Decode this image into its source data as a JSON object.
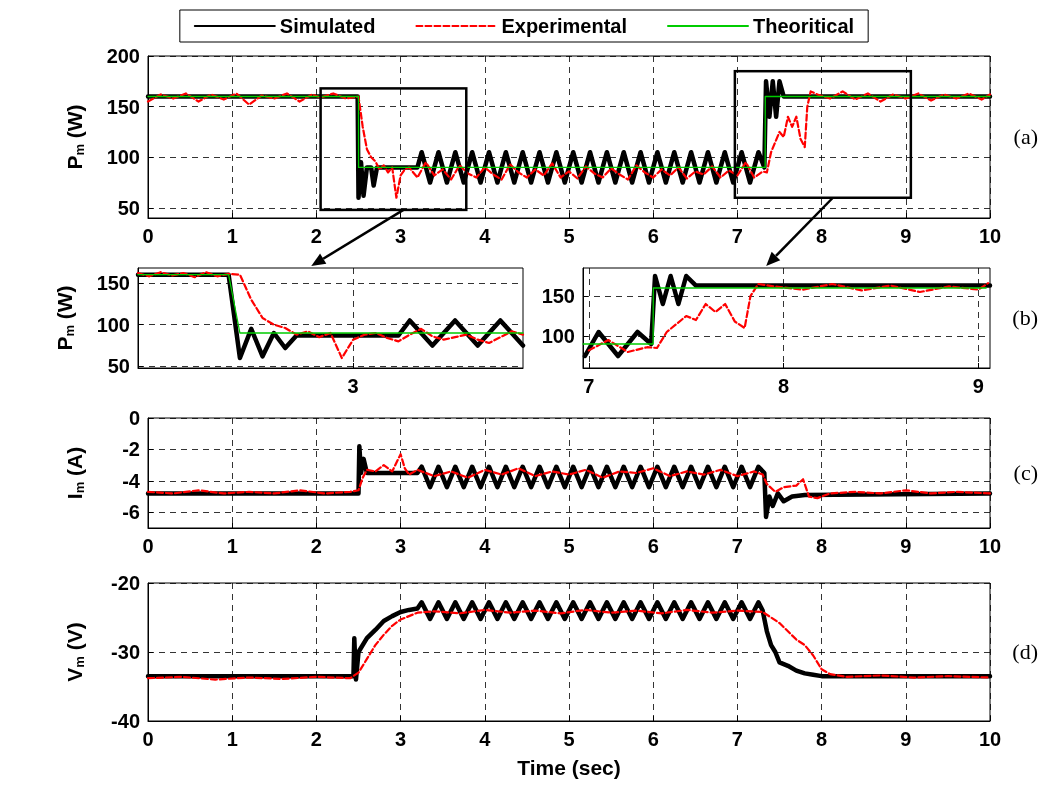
{
  "chart_data": [
    {
      "type": "line",
      "ylabel": "P$_{m}$ (W)",
      "annotations": [
        "(a)"
      ],
      "xlim": [
        0,
        10
      ],
      "xticks": [
        0,
        1,
        2,
        3,
        4,
        5,
        6,
        7,
        8,
        9,
        10
      ],
      "ylim": [
        40,
        200
      ],
      "yticks": [
        50,
        100,
        150,
        200
      ],
      "grid": true,
      "legend": "top",
      "marker": "none",
      "series": [
        {
          "name": "Simulated",
          "color": "#000000",
          "line_style": "solid",
          "x": [
            0,
            2.49,
            2.5,
            2.53,
            2.56,
            2.6,
            2.65,
            2.68,
            2.72,
            3.2,
            3.25,
            3.35,
            3.45,
            3.55,
            3.65,
            3.75,
            3.85,
            3.95,
            4.05,
            4.15,
            4.25,
            4.35,
            4.45,
            4.55,
            4.65,
            4.75,
            4.85,
            4.95,
            5.05,
            5.15,
            5.25,
            5.35,
            5.45,
            5.55,
            5.65,
            5.75,
            5.85,
            5.95,
            6.05,
            6.15,
            6.25,
            6.35,
            6.45,
            6.55,
            6.65,
            6.75,
            6.85,
            6.95,
            7.05,
            7.15,
            7.25,
            7.32,
            7.34,
            7.38,
            7.42,
            7.46,
            7.5,
            7.55,
            7.6,
            10
          ],
          "values": [
            160,
            160,
            60,
            95,
            62,
            90,
            90,
            72,
            90,
            90,
            105,
            75,
            105,
            75,
            105,
            75,
            105,
            75,
            105,
            75,
            105,
            75,
            105,
            75,
            105,
            75,
            105,
            75,
            105,
            75,
            105,
            75,
            105,
            75,
            105,
            75,
            105,
            75,
            105,
            75,
            105,
            75,
            105,
            75,
            105,
            75,
            105,
            75,
            105,
            75,
            105,
            90,
            175,
            140,
            175,
            140,
            175,
            160,
            160,
            160
          ]
        },
        {
          "name": "Experimental",
          "color": "#ff0000",
          "line_style": "dashed",
          "x": [
            0,
            0.15,
            0.3,
            0.45,
            0.6,
            0.75,
            0.9,
            1.05,
            1.2,
            1.35,
            1.5,
            1.65,
            1.8,
            1.95,
            2.05,
            2.2,
            2.35,
            2.5,
            2.55,
            2.6,
            2.65,
            2.7,
            2.75,
            2.8,
            2.85,
            2.9,
            2.95,
            3.0,
            3.05,
            3.1,
            3.2,
            3.3,
            3.4,
            3.5,
            3.6,
            3.7,
            3.8,
            3.9,
            4.0,
            4.1,
            4.2,
            4.3,
            4.4,
            4.5,
            4.6,
            4.7,
            4.8,
            4.9,
            5.0,
            5.1,
            5.2,
            5.3,
            5.4,
            5.5,
            5.6,
            5.7,
            5.8,
            5.9,
            6.0,
            6.1,
            6.2,
            6.3,
            6.4,
            6.5,
            6.6,
            6.7,
            6.8,
            6.9,
            7.0,
            7.1,
            7.2,
            7.3,
            7.35,
            7.4,
            7.45,
            7.5,
            7.55,
            7.6,
            7.65,
            7.7,
            7.75,
            7.8,
            7.83,
            7.87,
            7.95,
            8.1,
            8.25,
            8.4,
            8.55,
            8.7,
            8.85,
            9.0,
            9.15,
            9.3,
            9.45,
            9.6,
            9.75,
            9.9,
            10
          ],
          "values": [
            155,
            162,
            158,
            163,
            155,
            162,
            157,
            163,
            152,
            161,
            158,
            163,
            155,
            162,
            159,
            163,
            158,
            160,
            130,
            108,
            100,
            96,
            88,
            92,
            85,
            90,
            60,
            82,
            88,
            90,
            80,
            95,
            82,
            88,
            78,
            92,
            84,
            80,
            90,
            83,
            78,
            93,
            85,
            80,
            88,
            82,
            94,
            80,
            86,
            79,
            91,
            84,
            80,
            89,
            83,
            78,
            92,
            85,
            80,
            88,
            82,
            90,
            79,
            86,
            83,
            91,
            80,
            87,
            82,
            95,
            80,
            86,
            85,
            105,
            115,
            125,
            120,
            140,
            130,
            140,
            118,
            110,
            150,
            165,
            162,
            158,
            165,
            157,
            163,
            155,
            162,
            158,
            163,
            156,
            162,
            158,
            163,
            157,
            162
          ]
        },
        {
          "name": "Theoritical",
          "color": "#00cc00",
          "line_style": "solid",
          "x": [
            0,
            2.5,
            2.501,
            7.33,
            7.331,
            10
          ],
          "values": [
            160,
            160,
            90,
            90,
            160,
            160
          ]
        }
      ]
    },
    {
      "type": "line",
      "ylabel": "P$_{m}$ (W)",
      "categories": [
        null,
        null,
        null,
        null,
        null,
        null,
        null,
        null,
        null,
        null,
        null,
        null,
        null,
        null,
        null,
        null,
        null,
        null,
        null,
        "3",
        null,
        null,
        null,
        null,
        null,
        null,
        null,
        null,
        null,
        null,
        null,
        null,
        null,
        null,
        null
      ],
      "ylim": [
        48,
        168
      ],
      "yticks": [
        50,
        100,
        150
      ],
      "grid": true,
      "marker": "none",
      "series": [
        {
          "color": "#000000",
          "line_style": "solid",
          "values": [
            160,
            160,
            160,
            160,
            160,
            160,
            160,
            160,
            160,
            60,
            95,
            62,
            90,
            72,
            87,
            87,
            87,
            87,
            87,
            87,
            87,
            87,
            87,
            87,
            105,
            90,
            75,
            90,
            105,
            90,
            75,
            90,
            105,
            90,
            75
          ]
        },
        {
          "color": "#ff0000",
          "line_style": "dashed",
          "values": [
            162,
            158,
            163,
            159,
            162,
            157,
            163,
            158,
            161,
            160,
            130,
            108,
            100,
            96,
            88,
            92,
            85,
            90,
            60,
            82,
            88,
            90,
            84,
            80,
            88,
            95,
            86,
            82,
            85,
            88,
            82,
            78,
            85,
            92,
            88
          ]
        },
        {
          "color": "#00cc00",
          "line_style": "solid",
          "values": [
            160,
            160,
            160,
            160,
            160,
            160,
            160,
            160,
            160,
            90,
            90,
            90,
            90,
            90,
            90,
            90,
            90,
            90,
            90,
            90,
            90,
            90,
            90,
            90,
            90,
            90,
            90,
            90,
            90,
            90,
            90,
            90,
            90,
            90,
            90
          ]
        }
      ]
    },
    {
      "type": "line",
      "annotations": [
        "(b)"
      ],
      "xlim": [
        6.97,
        9.06
      ],
      "xticks": [
        7,
        8,
        9
      ],
      "ylim": [
        60,
        185
      ],
      "yticks": [
        100,
        150
      ],
      "grid": true,
      "marker": "none",
      "series": [
        {
          "color": "#000000",
          "line_style": "solid",
          "x": [
            6.98,
            7.05,
            7.15,
            7.25,
            7.32,
            7.34,
            7.38,
            7.42,
            7.46,
            7.5,
            7.55,
            7.6,
            9.06
          ],
          "values": [
            75,
            105,
            75,
            105,
            90,
            175,
            140,
            175,
            140,
            175,
            163,
            163,
            163
          ]
        },
        {
          "color": "#ff0000",
          "line_style": "dashed",
          "x": [
            7.0,
            7.1,
            7.2,
            7.3,
            7.35,
            7.4,
            7.45,
            7.5,
            7.55,
            7.6,
            7.65,
            7.7,
            7.75,
            7.8,
            7.83,
            7.87,
            7.95,
            8.1,
            8.25,
            8.4,
            8.55,
            8.7,
            8.85,
            9.0,
            9.05
          ],
          "values": [
            82,
            95,
            80,
            86,
            85,
            105,
            115,
            125,
            120,
            140,
            130,
            140,
            118,
            110,
            150,
            165,
            162,
            158,
            165,
            157,
            163,
            155,
            162,
            158,
            166
          ]
        },
        {
          "color": "#00cc00",
          "line_style": "solid",
          "x": [
            6.97,
            7.33,
            7.331,
            9.04
          ],
          "values": [
            90,
            90,
            160,
            160
          ]
        }
      ]
    },
    {
      "type": "line",
      "ylabel": "I$_{m}$ (A)",
      "annotations": [
        "(c)"
      ],
      "xlim": [
        0,
        10
      ],
      "xticks": [
        0,
        1,
        2,
        3,
        4,
        5,
        6,
        7,
        8,
        9,
        10
      ],
      "ylim": [
        -7,
        0
      ],
      "yticks": [
        -6,
        -4,
        -2,
        0
      ],
      "grid": true,
      "marker": "none",
      "series": [
        {
          "color": "#000000",
          "line_style": "solid",
          "x": [
            0,
            2.49,
            2.5,
            2.51,
            2.53,
            2.56,
            2.6,
            3.2,
            3.25,
            3.35,
            3.45,
            3.55,
            3.65,
            3.75,
            3.85,
            3.95,
            4.05,
            4.15,
            4.25,
            4.35,
            4.45,
            4.55,
            4.65,
            4.75,
            4.85,
            4.95,
            5.05,
            5.15,
            5.25,
            5.35,
            5.45,
            5.55,
            5.65,
            5.75,
            5.85,
            5.95,
            6.05,
            6.15,
            6.25,
            6.35,
            6.45,
            6.55,
            6.65,
            6.75,
            6.85,
            6.95,
            7.05,
            7.15,
            7.25,
            7.32,
            7.34,
            7.38,
            7.42,
            7.48,
            7.55,
            7.65,
            7.8,
            10
          ],
          "values": [
            -4.8,
            -4.8,
            -4.8,
            -1.8,
            -3.5,
            -2.6,
            -3.5,
            -3.5,
            -3.1,
            -4.4,
            -3.1,
            -4.4,
            -3.1,
            -4.4,
            -3.1,
            -4.4,
            -3.1,
            -4.4,
            -3.1,
            -4.4,
            -3.1,
            -4.4,
            -3.1,
            -4.4,
            -3.1,
            -4.4,
            -3.1,
            -4.4,
            -3.1,
            -4.4,
            -3.1,
            -4.4,
            -3.1,
            -4.4,
            -3.1,
            -4.4,
            -3.1,
            -4.4,
            -3.1,
            -4.4,
            -3.1,
            -4.4,
            -3.1,
            -4.4,
            -3.1,
            -4.4,
            -3.1,
            -4.4,
            -3.1,
            -3.5,
            -6.3,
            -5.0,
            -5.6,
            -4.8,
            -5.3,
            -5.0,
            -4.9,
            -4.8
          ]
        },
        {
          "color": "#ff0000",
          "line_style": "dashed",
          "x": [
            0,
            0.3,
            0.6,
            0.9,
            1.2,
            1.5,
            1.8,
            2.1,
            2.4,
            2.5,
            2.55,
            2.6,
            2.7,
            2.8,
            2.9,
            3.0,
            3.05,
            3.1,
            3.2,
            3.4,
            3.6,
            3.8,
            4.0,
            4.2,
            4.4,
            4.6,
            4.8,
            5.0,
            5.2,
            5.4,
            5.6,
            5.8,
            6.0,
            6.2,
            6.4,
            6.6,
            6.8,
            7.0,
            7.2,
            7.3,
            7.35,
            7.45,
            7.55,
            7.7,
            7.78,
            7.85,
            7.95,
            8.1,
            8.4,
            8.7,
            9.0,
            9.3,
            9.6,
            10
          ],
          "values": [
            -4.7,
            -4.8,
            -4.6,
            -4.8,
            -4.7,
            -4.8,
            -4.6,
            -4.8,
            -4.7,
            -4.6,
            -3.8,
            -3.3,
            -3.4,
            -3.0,
            -3.4,
            -2.3,
            -3.2,
            -3.6,
            -3.3,
            -3.7,
            -3.4,
            -3.8,
            -3.3,
            -3.6,
            -3.2,
            -3.7,
            -3.4,
            -3.6,
            -3.3,
            -3.8,
            -3.4,
            -3.5,
            -3.2,
            -3.7,
            -3.4,
            -3.6,
            -3.3,
            -3.7,
            -3.4,
            -3.6,
            -4.2,
            -4.7,
            -4.4,
            -4.3,
            -3.9,
            -5.0,
            -5.1,
            -4.8,
            -4.7,
            -4.8,
            -4.6,
            -4.8,
            -4.7,
            -4.8
          ]
        }
      ]
    },
    {
      "type": "line",
      "xlabel": "Time (sec)",
      "ylabel": "V$_{m}$ (V)",
      "annotations": [
        "(d)"
      ],
      "xlim": [
        0,
        10
      ],
      "xticks": [
        0,
        1,
        2,
        3,
        4,
        5,
        6,
        7,
        8,
        9,
        10
      ],
      "ylim": [
        -40,
        -20
      ],
      "yticks": [
        -40,
        -30,
        -20
      ],
      "grid": true,
      "marker": "none",
      "series": [
        {
          "color": "#000000",
          "line_style": "solid",
          "x": [
            0,
            2.44,
            2.45,
            2.47,
            2.5,
            2.6,
            2.7,
            2.8,
            2.9,
            3.0,
            3.1,
            3.2,
            3.25,
            3.35,
            3.45,
            3.55,
            3.65,
            3.75,
            3.85,
            3.95,
            4.05,
            4.15,
            4.25,
            4.35,
            4.45,
            4.55,
            4.65,
            4.75,
            4.85,
            4.95,
            5.05,
            5.15,
            5.25,
            5.35,
            5.45,
            5.55,
            5.65,
            5.75,
            5.85,
            5.95,
            6.05,
            6.15,
            6.25,
            6.35,
            6.45,
            6.55,
            6.65,
            6.75,
            6.85,
            6.95,
            7.05,
            7.15,
            7.25,
            7.3,
            7.35,
            7.4,
            7.45,
            7.5,
            7.6,
            7.7,
            7.8,
            7.9,
            8.0,
            10
          ],
          "values": [
            -33.5,
            -33.5,
            -28,
            -34,
            -30,
            -28,
            -26.8,
            -25.5,
            -24.8,
            -24.2,
            -23.9,
            -23.7,
            -22.8,
            -25.2,
            -22.8,
            -25.2,
            -22.8,
            -25.2,
            -22.8,
            -25.2,
            -22.8,
            -25.2,
            -22.8,
            -25.2,
            -22.8,
            -25.2,
            -22.8,
            -25.2,
            -22.8,
            -25.2,
            -22.8,
            -25.2,
            -22.8,
            -25.2,
            -22.8,
            -25.2,
            -22.8,
            -25.2,
            -22.8,
            -25.2,
            -22.8,
            -25.2,
            -22.8,
            -25.2,
            -22.8,
            -25.2,
            -22.8,
            -25.2,
            -22.8,
            -25.2,
            -22.8,
            -25.2,
            -22.8,
            -24,
            -27,
            -29,
            -30,
            -31.5,
            -32,
            -32.7,
            -33.1,
            -33.3,
            -33.5,
            -33.5
          ]
        },
        {
          "color": "#ff0000",
          "line_style": "dashed",
          "x": [
            0,
            0.4,
            0.8,
            1.2,
            1.6,
            2.0,
            2.4,
            2.5,
            2.6,
            2.7,
            2.8,
            2.9,
            3.0,
            3.1,
            3.2,
            3.4,
            3.7,
            4.0,
            4.3,
            4.6,
            4.9,
            5.2,
            5.5,
            5.8,
            6.1,
            6.4,
            6.7,
            7.0,
            7.3,
            7.4,
            7.5,
            7.6,
            7.7,
            7.8,
            7.9,
            8.0,
            8.1,
            8.3,
            8.7,
            9.1,
            9.5,
            10
          ],
          "values": [
            -33.8,
            -33.6,
            -34,
            -33.7,
            -33.9,
            -33.6,
            -33.8,
            -33,
            -31,
            -29,
            -27.5,
            -26.2,
            -25.3,
            -24.8,
            -24.3,
            -24.1,
            -24.4,
            -23.9,
            -24.3,
            -24,
            -24.4,
            -23.9,
            -24.3,
            -24,
            -24.4,
            -23.9,
            -24.3,
            -24,
            -24.2,
            -25,
            -25.8,
            -27,
            -28.2,
            -29,
            -30.5,
            -32.5,
            -33.2,
            -33.6,
            -33.4,
            -33.7,
            -33.5,
            -33.7
          ]
        }
      ]
    }
  ]
}
